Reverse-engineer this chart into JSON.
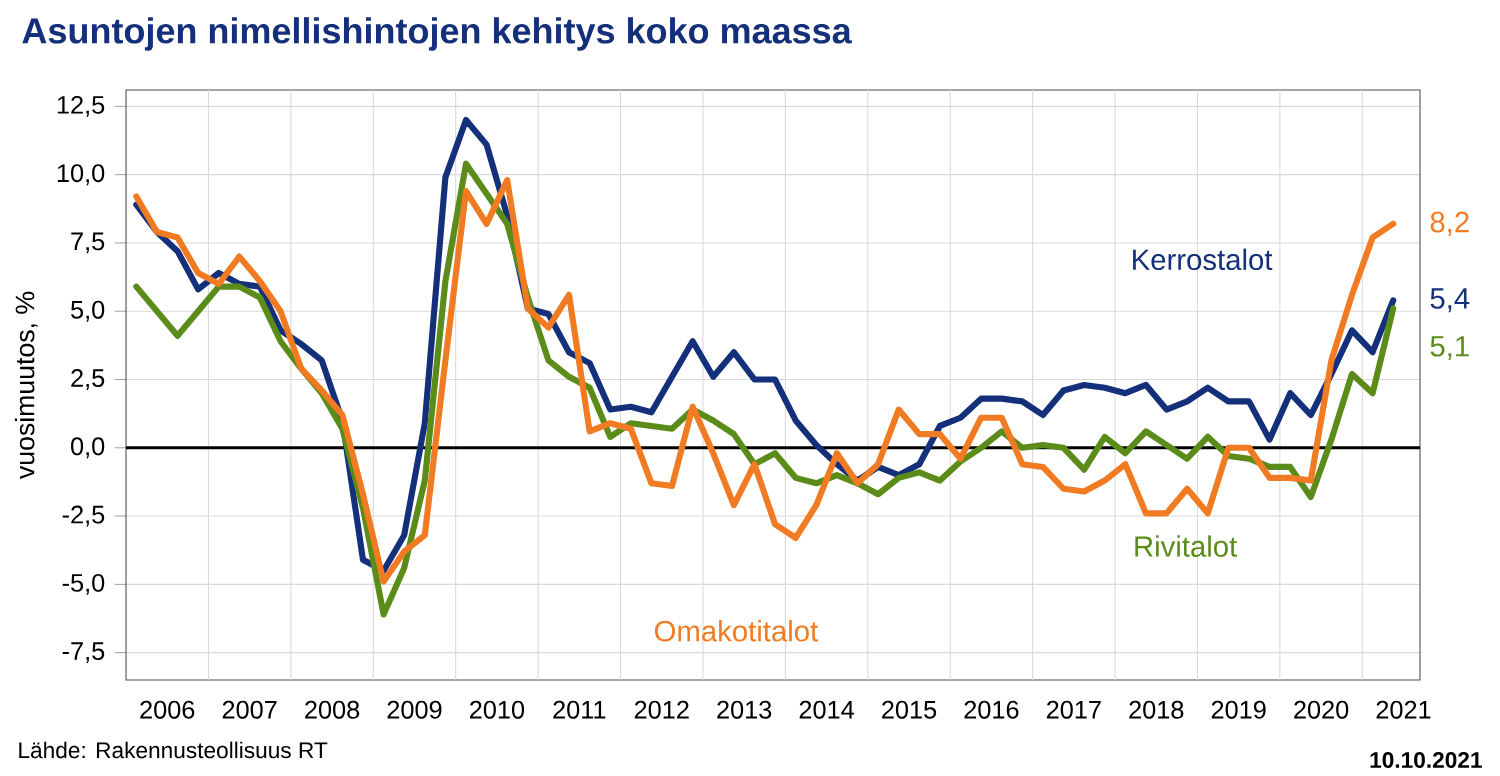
{
  "chart_data": {
    "type": "line",
    "title": "Asuntojen nimellishintojen kehitys koko maassa",
    "ylabel": "vuosimuutos, %",
    "x": [
      2006.125,
      2006.375,
      2006.625,
      2006.875,
      2007.125,
      2007.375,
      2007.625,
      2007.875,
      2008.125,
      2008.375,
      2008.625,
      2008.875,
      2009.125,
      2009.375,
      2009.625,
      2009.875,
      2010.125,
      2010.375,
      2010.625,
      2010.875,
      2011.125,
      2011.375,
      2011.625,
      2011.875,
      2012.125,
      2012.375,
      2012.625,
      2012.875,
      2013.125,
      2013.375,
      2013.625,
      2013.875,
      2014.125,
      2014.375,
      2014.625,
      2014.875,
      2015.125,
      2015.375,
      2015.625,
      2015.875,
      2016.125,
      2016.375,
      2016.625,
      2016.875,
      2017.125,
      2017.375,
      2017.625,
      2017.875,
      2018.125,
      2018.375,
      2018.625,
      2018.875,
      2019.125,
      2019.375,
      2019.625,
      2019.875,
      2020.125,
      2020.375,
      2020.625,
      2020.875,
      2021.125,
      2021.375
    ],
    "series": [
      {
        "name": "Kerrostalot",
        "color": "#14307a",
        "values": [
          8.9,
          7.9,
          7.2,
          5.8,
          6.4,
          6.0,
          5.9,
          4.3,
          3.8,
          3.2,
          1.0,
          -4.1,
          -4.5,
          -3.2,
          0.9,
          9.9,
          12.0,
          11.1,
          8.5,
          5.1,
          4.9,
          3.5,
          3.1,
          1.4,
          1.5,
          1.3,
          2.6,
          3.9,
          2.6,
          3.5,
          2.5,
          2.5,
          1.0,
          0.1,
          -0.6,
          -1.2,
          -0.7,
          -1.0,
          -0.6,
          0.8,
          1.1,
          1.8,
          1.8,
          1.7,
          1.2,
          2.1,
          2.3,
          2.2,
          2.0,
          2.3,
          1.4,
          1.7,
          2.2,
          1.7,
          1.7,
          0.3,
          2.0,
          1.2,
          2.7,
          4.3,
          3.5,
          5.4
        ],
        "value_labels": [
          null,
          null,
          null,
          null,
          null,
          null,
          null,
          null,
          null,
          null,
          null,
          null,
          null,
          null,
          null,
          null,
          null,
          null,
          null,
          null,
          null,
          null,
          null,
          null,
          null,
          null,
          null,
          null,
          null,
          null,
          null,
          null,
          null,
          null,
          null,
          null,
          null,
          null,
          null,
          null,
          null,
          null,
          null,
          null,
          null,
          null,
          null,
          null,
          null,
          null,
          null,
          null,
          null,
          null,
          null,
          null,
          null,
          null,
          null,
          null,
          null,
          "5,4"
        ]
      },
      {
        "name": "Rivitalot",
        "color": "#5b8c1a",
        "values": [
          5.9,
          5.0,
          4.1,
          5.0,
          5.9,
          5.9,
          5.5,
          3.9,
          2.9,
          2.0,
          0.7,
          -2.2,
          -6.1,
          -4.4,
          -1.2,
          6.1,
          10.4,
          9.3,
          8.2,
          5.5,
          3.2,
          2.6,
          2.2,
          0.4,
          0.9,
          0.8,
          0.7,
          1.4,
          1.0,
          0.5,
          -0.6,
          -0.2,
          -1.1,
          -1.3,
          -1.0,
          -1.3,
          -1.7,
          -1.1,
          -0.9,
          -1.2,
          -0.5,
          0.0,
          0.6,
          0.0,
          0.1,
          0.0,
          -0.8,
          0.4,
          -0.2,
          0.6,
          0.1,
          -0.4,
          0.4,
          -0.3,
          -0.4,
          -0.7,
          -0.7,
          -1.8,
          0.3,
          2.7,
          2.0,
          5.1
        ],
        "value_labels": [
          null,
          null,
          null,
          null,
          null,
          null,
          null,
          null,
          null,
          null,
          null,
          null,
          null,
          null,
          null,
          null,
          null,
          null,
          null,
          null,
          null,
          null,
          null,
          null,
          null,
          null,
          null,
          null,
          null,
          null,
          null,
          null,
          null,
          null,
          null,
          null,
          null,
          null,
          null,
          null,
          null,
          null,
          null,
          null,
          null,
          null,
          null,
          null,
          null,
          null,
          null,
          null,
          null,
          null,
          null,
          null,
          null,
          null,
          null,
          null,
          null,
          "5,1"
        ]
      },
      {
        "name": "Omakotitalot",
        "color": "#f07b22",
        "values": [
          9.2,
          7.9,
          7.7,
          6.4,
          6.0,
          7.0,
          6.1,
          5.0,
          2.9,
          2.1,
          1.2,
          -1.7,
          -4.9,
          -3.8,
          -3.2,
          3.2,
          9.4,
          8.2,
          9.8,
          5.1,
          4.4,
          5.6,
          0.6,
          0.9,
          0.7,
          -1.3,
          -1.4,
          1.5,
          -0.2,
          -2.1,
          -0.6,
          -2.8,
          -3.3,
          -2.1,
          -0.2,
          -1.3,
          -0.6,
          1.4,
          0.5,
          0.5,
          -0.4,
          1.1,
          1.1,
          -0.6,
          -0.7,
          -1.5,
          -1.6,
          -1.2,
          -0.6,
          -2.4,
          -2.4,
          -1.5,
          -2.4,
          0.0,
          0.0,
          -1.1,
          -1.1,
          -1.2,
          3.2,
          5.6,
          7.7,
          8.2
        ],
        "value_labels": [
          null,
          null,
          null,
          null,
          null,
          null,
          null,
          null,
          null,
          null,
          null,
          null,
          null,
          null,
          null,
          null,
          null,
          null,
          null,
          null,
          null,
          null,
          null,
          null,
          null,
          null,
          null,
          null,
          null,
          null,
          null,
          null,
          null,
          null,
          null,
          null,
          null,
          null,
          null,
          null,
          null,
          null,
          null,
          null,
          null,
          null,
          null,
          null,
          null,
          null,
          null,
          null,
          null,
          null,
          null,
          null,
          null,
          null,
          null,
          null,
          null,
          "8,2"
        ]
      }
    ],
    "xlim": [
      2006,
      2021.7
    ],
    "ylim": [
      -8.5,
      13.1
    ],
    "xticks": [
      {
        "value": 2006.5,
        "label": "2006"
      },
      {
        "value": 2007.5,
        "label": "2007"
      },
      {
        "value": 2008.5,
        "label": "2008"
      },
      {
        "value": 2009.5,
        "label": "2009"
      },
      {
        "value": 2010.5,
        "label": "2010"
      },
      {
        "value": 2011.5,
        "label": "2011"
      },
      {
        "value": 2012.5,
        "label": "2012"
      },
      {
        "value": 2013.5,
        "label": "2013"
      },
      {
        "value": 2014.5,
        "label": "2014"
      },
      {
        "value": 2015.5,
        "label": "2015"
      },
      {
        "value": 2016.5,
        "label": "2016"
      },
      {
        "value": 2017.5,
        "label": "2017"
      },
      {
        "value": 2018.5,
        "label": "2018"
      },
      {
        "value": 2019.5,
        "label": "2019"
      },
      {
        "value": 2020.5,
        "label": "2020"
      },
      {
        "value": 2021.5,
        "label": "2021"
      },
      {
        "value": 2007,
        "label": null
      },
      {
        "value": 2008,
        "label": null
      },
      {
        "value": 2009,
        "label": null
      },
      {
        "value": 2010,
        "label": null
      },
      {
        "value": 2011,
        "label": null
      },
      {
        "value": 2012,
        "label": null
      },
      {
        "value": 2013,
        "label": null
      },
      {
        "value": 2014,
        "label": null
      },
      {
        "value": 2015,
        "label": null
      },
      {
        "value": 2016,
        "label": null
      },
      {
        "value": 2017,
        "label": null
      },
      {
        "value": 2018,
        "label": null
      },
      {
        "value": 2019,
        "label": null
      },
      {
        "value": 2020,
        "label": null
      },
      {
        "value": 2021,
        "label": null
      }
    ],
    "yticks": [
      {
        "value": -7.5,
        "label": "-7,5"
      },
      {
        "value": -5,
        "label": "-5,0"
      },
      {
        "value": -2.5,
        "label": "-2,5"
      },
      {
        "value": 0,
        "label": "0,0"
      },
      {
        "value": 2.5,
        "label": "2,5"
      },
      {
        "value": 5,
        "label": "5,0"
      },
      {
        "value": 7.5,
        "label": "7,5"
      },
      {
        "value": 10,
        "label": "10,0"
      },
      {
        "value": 12.5,
        "label": "12,5"
      }
    ],
    "ref_lines": [
      {
        "axis": "y",
        "value": 0,
        "color": "#000000"
      }
    ],
    "grid": true,
    "line_style": "solid",
    "annotations": [
      "Lähde: Rakennusteollisuus RT",
      "10.10.2021"
    ]
  }
}
